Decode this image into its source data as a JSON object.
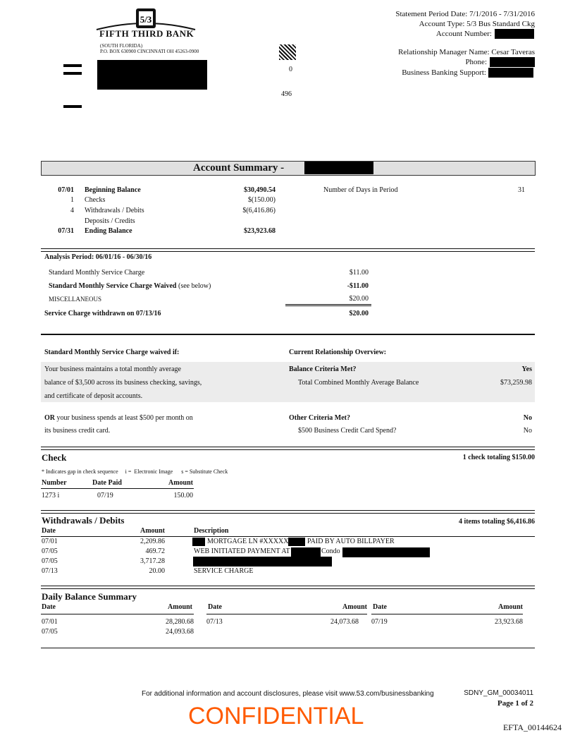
{
  "bank": {
    "name": "FIFTH THIRD BANK",
    "logo_text": "5/3",
    "region": "(SOUTH FLORIDA)",
    "address": "P.O. BOX 630900 CINCINNATI OH  45263-0900",
    "code1": "0",
    "code2": "496"
  },
  "header": {
    "period": "Statement Period Date: 7/1/2016 - 7/31/2016",
    "account_type": "Account Type: 5/3 Bus Standard Ckg",
    "account_number_label": "Account Number:",
    "manager": "Relationship Manager Name: Cesar Taveras",
    "phone_label": "Phone:",
    "support_label": "Business Banking Support:"
  },
  "summary": {
    "title": "Account Summary -",
    "rows": [
      {
        "date": "07/01",
        "label": "Beginning Balance",
        "amount": "$30,490.54",
        "bold": true
      },
      {
        "date": "1",
        "label": "Checks",
        "amount": "$(150.00)"
      },
      {
        "date": "4",
        "label": "Withdrawals / Debits",
        "amount": "$(6,416.86)"
      },
      {
        "date": "",
        "label": "Deposits / Credits",
        "amount": ""
      },
      {
        "date": "07/31",
        "label": "Ending Balance",
        "amount": "$23,923.68",
        "bold": true
      }
    ],
    "days_label": "Number of Days in Period",
    "days_value": "31"
  },
  "analysis": {
    "title": "Analysis Period: 06/01/16 - 06/30/16",
    "row1_label": "Standard Monthly Service Charge",
    "row1_amount": "$11.00",
    "row2_label": "Standard Monthly Service Charge Waived",
    "row2_note": " (see below)",
    "row2_amount": "-$11.00",
    "row3_label": "MISCELLANEOUS",
    "row3_amount": "$20.00",
    "total_label": "Service Charge withdrawn on 07/13/16",
    "total_amount": "$20.00"
  },
  "waiver": {
    "left_title": "Standard Monthly Service Charge waived if:",
    "right_title": "Current Relationship Overview:",
    "left1": [
      "Your business maintains a total monthly average",
      "balance of $3,500 across its business checking, savings,",
      "and certificate of deposit accounts."
    ],
    "left2_bold": "OR",
    "left2_rest": " your business spends at least $500 per month on",
    "left2_line2": "its business credit card.",
    "balance_criteria": "Balance Criteria Met?",
    "balance_criteria_value": "Yes",
    "combined_label": "Total Combined Monthly Average Balance",
    "combined_value": "$73,259.98",
    "other_criteria": "Other Criteria Met?",
    "other_criteria_value": "No",
    "spend_label": "$500 Business Credit Card Spend?",
    "spend_value": "No"
  },
  "check": {
    "title": "Check",
    "total": "1 check totaling $150.00",
    "legend": "* Indicates gap in check sequence     i =  Electronic Image      s = Substitute Check",
    "headers": [
      "Number",
      "Date Paid",
      "Amount"
    ],
    "rows": [
      {
        "number": "1273 i",
        "date": "07/19",
        "amount": "150.00"
      }
    ]
  },
  "withdrawals": {
    "title": "Withdrawals / Debits",
    "total": "4 items totaling $6,416.86",
    "headers": [
      "Date",
      "Amount",
      "Description"
    ],
    "rows": [
      {
        "date": "07/01",
        "amount": "2,209.86",
        "d1": "MORTGAGE LN #XXXXXX",
        "d2": "PAID BY AUTO BILLPAYER"
      },
      {
        "date": "07/05",
        "amount": "469.72",
        "d1": "WEB INITIATED PAYMENT AT",
        "d2": "Condo"
      },
      {
        "date": "07/05",
        "amount": "3,717.28"
      },
      {
        "date": "07/13",
        "amount": "20.00",
        "d1": "SERVICE CHARGE"
      }
    ]
  },
  "daily": {
    "title": "Daily Balance Summary",
    "headers": [
      "Date",
      "Amount"
    ],
    "rows": [
      {
        "date": "07/01",
        "amount": "28,280.68"
      },
      {
        "date": "07/05",
        "amount": "24,093.68"
      },
      {
        "date": "07/13",
        "amount": "24,073.68"
      },
      {
        "date": "07/19",
        "amount": "23,923.68"
      }
    ]
  },
  "footer": {
    "disclosure": "For additional information and account disclosures, please visit www.53.com/businessbanking",
    "watermark": "CONFIDENTIAL",
    "bates": "SDNY_GM_00034011",
    "page": "Page 1 of 2",
    "efta": "EFTA_00144624"
  },
  "colors": {
    "watermark": "#ff5a00",
    "band": "#ececec",
    "title_bar": "#e0e0e0"
  }
}
